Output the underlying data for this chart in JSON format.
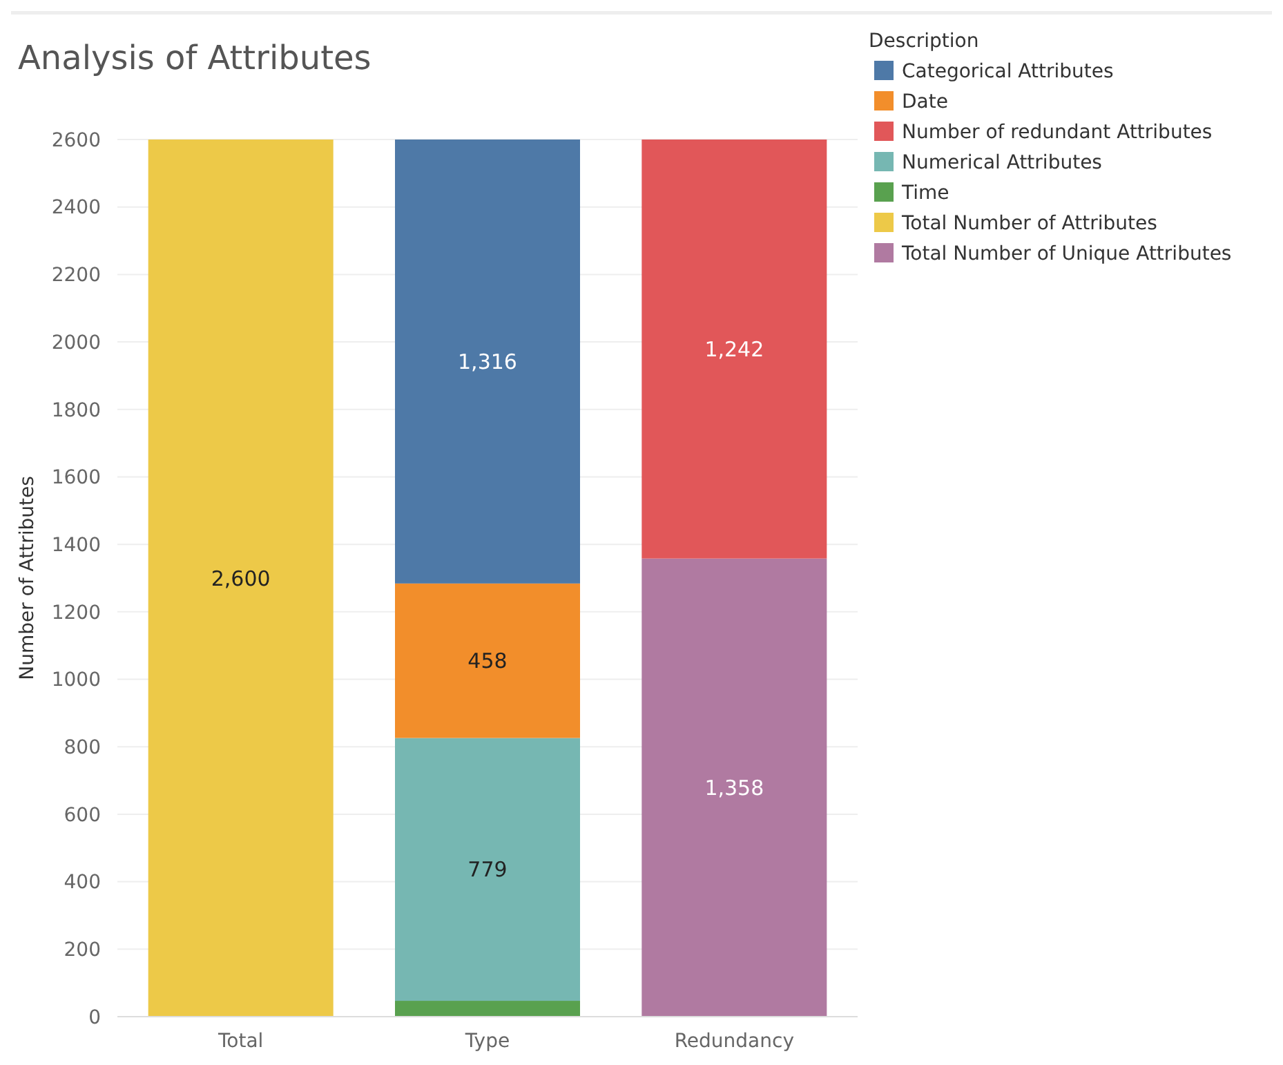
{
  "chart_data": {
    "type": "bar",
    "title": "Analysis of Attributes",
    "ylabel": "Number of Attributes",
    "legend_title": "Description",
    "categories": [
      "Total",
      "Type",
      "Redundancy"
    ],
    "stacked": true,
    "ylim": [
      0,
      2600
    ],
    "yticks": [
      0,
      200,
      400,
      600,
      800,
      1000,
      1200,
      1400,
      1600,
      1800,
      2000,
      2200,
      2400,
      2600
    ],
    "grid": "y",
    "legend": "top right",
    "series": [
      {
        "name": "Time",
        "color": "#59a14f",
        "values": [
          null,
          47,
          null
        ],
        "value_labels": [
          null,
          null,
          null
        ]
      },
      {
        "name": "Numerical Attributes",
        "color": "#76b7b2",
        "values": [
          null,
          779,
          null
        ],
        "value_labels": [
          null,
          "779",
          null
        ]
      },
      {
        "name": "Date",
        "color": "#f28e2b",
        "values": [
          null,
          458,
          null
        ],
        "value_labels": [
          null,
          "458",
          null
        ]
      },
      {
        "name": "Categorical Attributes",
        "color": "#4e79a7",
        "values": [
          null,
          1316,
          null
        ],
        "value_labels": [
          null,
          "1,316",
          null
        ]
      },
      {
        "name": "Total Number of Attributes",
        "color": "#edc948",
        "values": [
          2600,
          null,
          null
        ],
        "value_labels": [
          "2,600",
          null,
          null
        ]
      },
      {
        "name": "Total Number of Unique Attributes",
        "color": "#b07aa1",
        "values": [
          null,
          null,
          1358
        ],
        "value_labels": [
          null,
          null,
          "1,358"
        ]
      },
      {
        "name": "Number of redundant Attributes",
        "color": "#e15759",
        "values": [
          null,
          null,
          1242
        ],
        "value_labels": [
          null,
          null,
          "1,242"
        ]
      }
    ]
  }
}
